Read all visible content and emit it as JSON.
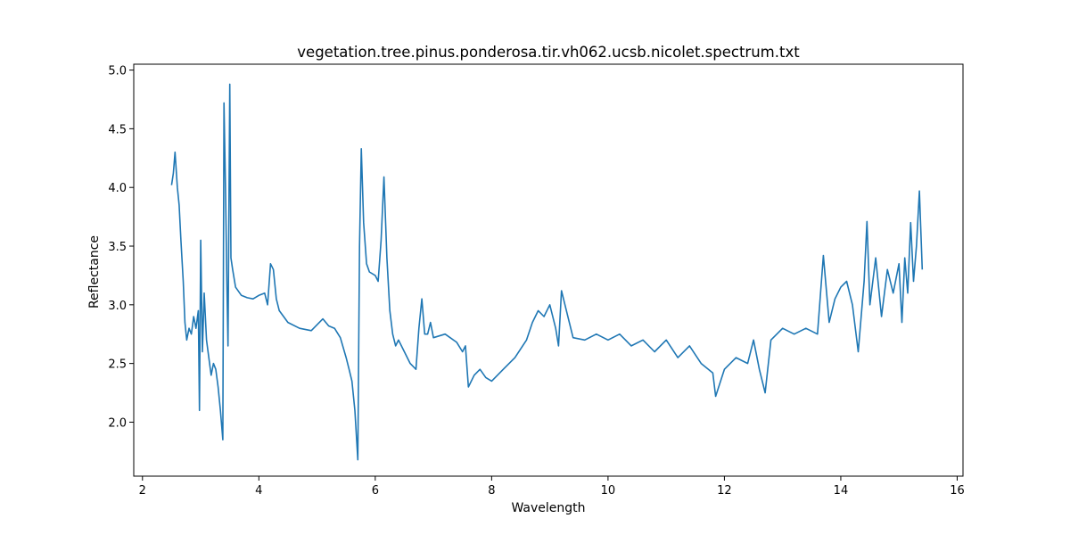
{
  "chart_data": {
    "type": "line",
    "title": "vegetation.tree.pinus.ponderosa.tir.vh062.ucsb.nicolet.spectrum.txt",
    "xlabel": "Wavelength",
    "ylabel": "Reflectance",
    "xlim": [
      1.85,
      16.1
    ],
    "ylim": [
      1.54,
      5.05
    ],
    "xticks": [
      2,
      4,
      6,
      8,
      10,
      12,
      14,
      16
    ],
    "yticks": [
      2.0,
      2.5,
      3.0,
      3.5,
      4.0,
      4.5,
      5.0
    ],
    "xtick_labels": [
      "2",
      "4",
      "6",
      "8",
      "10",
      "12",
      "14",
      "16"
    ],
    "ytick_labels": [
      "2.0",
      "2.5",
      "3.0",
      "3.5",
      "4.0",
      "4.5",
      "5.0"
    ],
    "grid": false,
    "color": "#1f77b4",
    "series": [
      {
        "x": [
          2.5,
          2.53,
          2.56,
          2.6,
          2.63,
          2.66,
          2.7,
          2.73,
          2.76,
          2.8,
          2.84,
          2.88,
          2.92,
          2.96,
          2.98,
          3.0,
          3.03,
          3.06,
          3.1,
          3.14,
          3.18,
          3.22,
          3.26,
          3.3,
          3.34,
          3.38,
          3.4,
          3.43,
          3.45,
          3.47,
          3.5,
          3.52,
          3.55,
          3.6,
          3.7,
          3.8,
          3.9,
          4.0,
          4.1,
          4.15,
          4.2,
          4.25,
          4.3,
          4.35,
          4.5,
          4.7,
          4.9,
          5.1,
          5.2,
          5.3,
          5.4,
          5.5,
          5.55,
          5.6,
          5.65,
          5.7,
          5.73,
          5.76,
          5.8,
          5.85,
          5.9,
          6.0,
          6.05,
          6.1,
          6.15,
          6.2,
          6.25,
          6.3,
          6.35,
          6.4,
          6.5,
          6.6,
          6.7,
          6.75,
          6.8,
          6.85,
          6.9,
          6.95,
          7.0,
          7.2,
          7.4,
          7.5,
          7.55,
          7.6,
          7.7,
          7.8,
          7.9,
          8.0,
          8.2,
          8.4,
          8.6,
          8.7,
          8.8,
          8.9,
          9.0,
          9.1,
          9.15,
          9.2,
          9.4,
          9.6,
          9.8,
          10.0,
          10.2,
          10.4,
          10.6,
          10.8,
          11.0,
          11.2,
          11.4,
          11.6,
          11.8,
          11.85,
          12.0,
          12.2,
          12.4,
          12.5,
          12.6,
          12.7,
          12.8,
          13.0,
          13.2,
          13.4,
          13.6,
          13.7,
          13.8,
          13.9,
          14.0,
          14.1,
          14.2,
          14.3,
          14.4,
          14.45,
          14.5,
          14.6,
          14.7,
          14.8,
          14.9,
          15.0,
          15.05,
          15.1,
          15.15,
          15.2,
          15.25,
          15.3,
          15.35,
          15.4
        ],
        "y": [
          4.02,
          4.12,
          4.3,
          4.0,
          3.85,
          3.55,
          3.2,
          2.85,
          2.7,
          2.8,
          2.75,
          2.9,
          2.8,
          2.95,
          2.1,
          3.55,
          2.6,
          3.1,
          2.7,
          2.55,
          2.4,
          2.5,
          2.45,
          2.3,
          2.1,
          1.85,
          4.72,
          3.9,
          3.2,
          2.65,
          4.88,
          3.4,
          3.3,
          3.15,
          3.08,
          3.06,
          3.05,
          3.08,
          3.1,
          3.0,
          3.35,
          3.3,
          3.05,
          2.95,
          2.85,
          2.8,
          2.78,
          2.88,
          2.82,
          2.8,
          2.72,
          2.55,
          2.45,
          2.35,
          2.1,
          1.68,
          3.5,
          4.33,
          3.7,
          3.35,
          3.28,
          3.25,
          3.2,
          3.55,
          4.09,
          3.4,
          2.95,
          2.75,
          2.65,
          2.7,
          2.6,
          2.5,
          2.45,
          2.8,
          3.05,
          2.75,
          2.75,
          2.85,
          2.72,
          2.75,
          2.68,
          2.6,
          2.65,
          2.3,
          2.4,
          2.45,
          2.38,
          2.35,
          2.45,
          2.55,
          2.7,
          2.85,
          2.95,
          2.9,
          3.0,
          2.8,
          2.65,
          3.12,
          2.72,
          2.7,
          2.75,
          2.7,
          2.75,
          2.65,
          2.7,
          2.6,
          2.7,
          2.55,
          2.65,
          2.5,
          2.42,
          2.22,
          2.45,
          2.55,
          2.5,
          2.7,
          2.45,
          2.25,
          2.7,
          2.8,
          2.75,
          2.8,
          2.75,
          3.42,
          2.85,
          3.05,
          3.15,
          3.2,
          3.0,
          2.6,
          3.2,
          3.71,
          3.0,
          3.4,
          2.9,
          3.3,
          3.1,
          3.35,
          2.85,
          3.4,
          3.1,
          3.7,
          3.2,
          3.5,
          3.97,
          3.3
        ]
      }
    ]
  }
}
